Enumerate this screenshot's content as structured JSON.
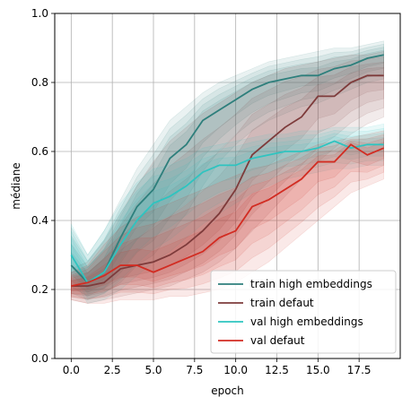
{
  "chart_data": {
    "type": "line",
    "xlabel": "epoch",
    "ylabel": "médiane",
    "xlim": [
      -1,
      20
    ],
    "ylim": [
      0,
      1.0
    ],
    "xticks": [
      0,
      2.5,
      5,
      7.5,
      10,
      12.5,
      15,
      17.5
    ],
    "xtick_labels": [
      "0.0",
      "2.5",
      "5.0",
      "7.5",
      "10.0",
      "12.5",
      "15.0",
      "17.5"
    ],
    "yticks": [
      0,
      0.2,
      0.4,
      0.6,
      0.8,
      1.0
    ],
    "ytick_labels": [
      "0.0",
      "0.2",
      "0.4",
      "0.6",
      "0.8",
      "1.0"
    ],
    "grid": true,
    "legend_position": "bottom-right",
    "x": [
      0,
      1,
      2,
      3,
      4,
      5,
      6,
      7,
      8,
      9,
      10,
      11,
      12,
      13,
      14,
      15,
      16,
      17,
      18,
      19
    ],
    "series": [
      {
        "name": "train high embeddings",
        "color": "#2e7f7c",
        "values": [
          0.27,
          0.22,
          0.25,
          0.35,
          0.44,
          0.49,
          0.58,
          0.62,
          0.69,
          0.72,
          0.75,
          0.78,
          0.8,
          0.81,
          0.82,
          0.82,
          0.84,
          0.85,
          0.87,
          0.88
        ],
        "band_low": [
          0.19,
          0.17,
          0.19,
          0.22,
          0.27,
          0.3,
          0.36,
          0.42,
          0.5,
          0.57,
          0.62,
          0.66,
          0.69,
          0.71,
          0.73,
          0.74,
          0.76,
          0.78,
          0.8,
          0.81
        ],
        "band_high": [
          0.38,
          0.3,
          0.37,
          0.46,
          0.55,
          0.62,
          0.69,
          0.73,
          0.77,
          0.8,
          0.82,
          0.84,
          0.86,
          0.87,
          0.88,
          0.89,
          0.9,
          0.9,
          0.91,
          0.92
        ]
      },
      {
        "name": "train defaut",
        "color": "#7e3b3b",
        "values": [
          0.21,
          0.21,
          0.22,
          0.26,
          0.27,
          0.28,
          0.3,
          0.33,
          0.37,
          0.42,
          0.49,
          0.59,
          0.63,
          0.67,
          0.7,
          0.76,
          0.76,
          0.8,
          0.82,
          0.82
        ],
        "band_low": [
          0.17,
          0.16,
          0.17,
          0.18,
          0.19,
          0.2,
          0.21,
          0.23,
          0.25,
          0.28,
          0.32,
          0.37,
          0.42,
          0.47,
          0.52,
          0.57,
          0.61,
          0.65,
          0.68,
          0.7
        ],
        "band_high": [
          0.26,
          0.28,
          0.34,
          0.42,
          0.5,
          0.57,
          0.63,
          0.67,
          0.71,
          0.74,
          0.77,
          0.8,
          0.82,
          0.84,
          0.85,
          0.86,
          0.87,
          0.88,
          0.88,
          0.89
        ]
      },
      {
        "name": "val high embeddings",
        "color": "#2ec4c0",
        "values": [
          0.3,
          0.22,
          0.25,
          0.33,
          0.4,
          0.45,
          0.47,
          0.5,
          0.54,
          0.56,
          0.56,
          0.58,
          0.59,
          0.6,
          0.6,
          0.61,
          0.63,
          0.61,
          0.62,
          0.62
        ],
        "band_low": [
          0.24,
          0.16,
          0.17,
          0.2,
          0.24,
          0.28,
          0.31,
          0.35,
          0.39,
          0.42,
          0.45,
          0.48,
          0.5,
          0.52,
          0.53,
          0.54,
          0.55,
          0.55,
          0.56,
          0.56
        ],
        "band_high": [
          0.39,
          0.3,
          0.37,
          0.45,
          0.51,
          0.55,
          0.56,
          0.58,
          0.61,
          0.62,
          0.63,
          0.64,
          0.65,
          0.65,
          0.66,
          0.66,
          0.67,
          0.67,
          0.67,
          0.68
        ]
      },
      {
        "name": "val defaut",
        "color": "#d22c22",
        "values": [
          0.21,
          0.22,
          0.24,
          0.27,
          0.27,
          0.25,
          0.27,
          0.29,
          0.31,
          0.35,
          0.37,
          0.44,
          0.46,
          0.49,
          0.52,
          0.57,
          0.57,
          0.62,
          0.59,
          0.61
        ],
        "band_low": [
          0.17,
          0.16,
          0.16,
          0.17,
          0.17,
          0.17,
          0.18,
          0.18,
          0.19,
          0.2,
          0.22,
          0.25,
          0.28,
          0.32,
          0.36,
          0.4,
          0.44,
          0.48,
          0.5,
          0.52
        ],
        "band_high": [
          0.25,
          0.27,
          0.33,
          0.38,
          0.41,
          0.43,
          0.45,
          0.47,
          0.49,
          0.51,
          0.53,
          0.55,
          0.56,
          0.58,
          0.6,
          0.62,
          0.63,
          0.64,
          0.65,
          0.66
        ]
      }
    ]
  }
}
